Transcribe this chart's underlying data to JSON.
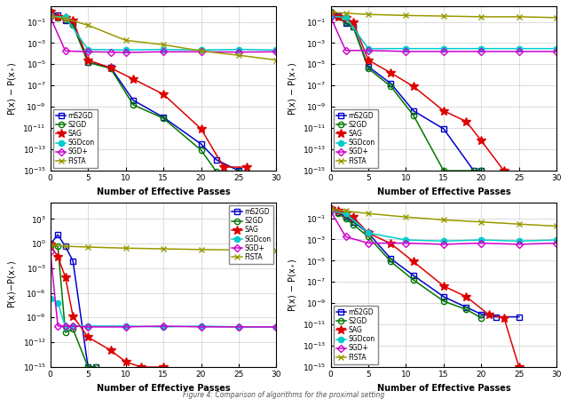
{
  "xlabel": "Number of Effective Passes",
  "ylabel_left": "P(x) - P(x_*)",
  "ylabel_right": "P(x) - P(x_*)",
  "method_order": [
    "mS2GD",
    "S2GD",
    "SAG",
    "SGDcon",
    "SGD+",
    "FISTA"
  ],
  "colors": {
    "mS2GD": "#0000cc",
    "S2GD": "#007700",
    "SAG": "#dd0000",
    "SGDcon": "#00cccc",
    "SGD+": "#cc00cc",
    "FISTA": "#999900"
  },
  "markers": {
    "mS2GD": "s",
    "S2GD": "o",
    "SAG": "*",
    "SGDcon": "o",
    "SGD+": "D",
    "FISTA": "x"
  },
  "mfc": {
    "mS2GD": "none",
    "S2GD": "none",
    "SAG": "#dd0000",
    "SGDcon": "#00cccc",
    "SGD+": "none",
    "FISTA": "#999900"
  },
  "sp1": {
    "ylim": [
      1e-15,
      3
    ],
    "legend_loc": "lower left",
    "mS2GD": {
      "x": [
        0,
        1,
        2,
        3,
        5,
        8,
        11,
        15,
        20,
        22,
        25
      ],
      "y": [
        0.65,
        0.45,
        0.14,
        0.07,
        1.5e-05,
        5e-06,
        4e-09,
        1e-10,
        3e-13,
        1e-14,
        9e-16
      ]
    },
    "S2GD": {
      "x": [
        0,
        1,
        2,
        3,
        5,
        8,
        11,
        15,
        20,
        22,
        25
      ],
      "y": [
        0.9,
        0.22,
        0.17,
        0.05,
        1.5e-05,
        4e-06,
        1.5e-09,
        8e-11,
        8e-14,
        8e-16,
        8e-16
      ]
    },
    "SAG": {
      "x": [
        0,
        1,
        2,
        3,
        5,
        8,
        11,
        15,
        20,
        23,
        26
      ],
      "y": [
        0.9,
        0.28,
        0.24,
        0.14,
        2.5e-05,
        4.5e-06,
        4e-07,
        1.5e-08,
        8e-12,
        2e-15,
        2e-15
      ]
    },
    "SGDcon": {
      "x": [
        0,
        2,
        5,
        10,
        15,
        20,
        25,
        30
      ],
      "y": [
        0.35,
        0.28,
        0.00025,
        0.00022,
        0.00025,
        0.00022,
        0.00025,
        0.00022
      ]
    },
    "SGD+": {
      "x": [
        0,
        2,
        5,
        8,
        10,
        15,
        20,
        25,
        30
      ],
      "y": [
        0.28,
        0.00018,
        0.00015,
        0.00014,
        0.00013,
        0.00015,
        0.00015,
        0.00014,
        0.00015
      ]
    },
    "FISTA": {
      "x": [
        0,
        2,
        5,
        10,
        15,
        20,
        25,
        30
      ],
      "y": [
        0.35,
        0.2,
        0.048,
        0.0018,
        0.0007,
        0.00018,
        7e-05,
        2.5e-05
      ]
    }
  },
  "sp2": {
    "ylim": [
      1e-15,
      3
    ],
    "legend_loc": "lower left",
    "mS2GD": {
      "x": [
        0,
        1,
        2,
        3,
        5,
        8,
        11,
        15,
        19,
        20
      ],
      "y": [
        0.65,
        0.35,
        0.07,
        0.035,
        6e-06,
        1.5e-07,
        4e-10,
        8e-12,
        9e-16,
        9e-16
      ]
    },
    "S2GD": {
      "x": [
        0,
        1,
        2,
        3,
        5,
        8,
        11,
        15,
        19,
        20
      ],
      "y": [
        0.85,
        0.28,
        0.09,
        0.035,
        4e-06,
        8e-08,
        1.5e-10,
        9e-16,
        9e-16,
        9e-16
      ]
    },
    "SAG": {
      "x": [
        0,
        1,
        2,
        3,
        5,
        8,
        11,
        15,
        18,
        20,
        23
      ],
      "y": [
        0.65,
        0.32,
        0.23,
        0.09,
        2.5e-05,
        1.5e-06,
        8e-08,
        4e-10,
        4e-11,
        6e-13,
        9e-16
      ]
    },
    "SGDcon": {
      "x": [
        0,
        2,
        5,
        10,
        15,
        20,
        25,
        30
      ],
      "y": [
        0.32,
        0.28,
        0.0003,
        0.0003,
        0.0003,
        0.0003,
        0.0003,
        0.0003
      ]
    },
    "SGD+": {
      "x": [
        0,
        2,
        5,
        10,
        15,
        20,
        25,
        30
      ],
      "y": [
        0.28,
        0.0002,
        0.0002,
        0.00016,
        0.00016,
        0.00016,
        0.00016,
        0.00016
      ]
    },
    "FISTA": {
      "x": [
        0,
        2,
        5,
        10,
        15,
        20,
        25,
        30
      ],
      "y": [
        0.8,
        0.65,
        0.5,
        0.4,
        0.35,
        0.3,
        0.3,
        0.25
      ]
    }
  },
  "sp3": {
    "ylim": [
      1e-15,
      100000.0
    ],
    "legend_loc": "upper right",
    "mS2GD": {
      "x": [
        0,
        1,
        2,
        3,
        5,
        6
      ],
      "y": [
        0.85,
        12.0,
        0.45,
        0.008,
        9e-16,
        9e-16
      ]
    },
    "S2GD": {
      "x": [
        0,
        1,
        2,
        3,
        5,
        6
      ],
      "y": [
        0.85,
        0.45,
        1.5e-11,
        4e-11,
        9e-16,
        9e-16
      ]
    },
    "SAG": {
      "x": [
        0,
        1,
        2,
        3,
        5,
        8,
        10,
        12,
        15
      ],
      "y": [
        0.75,
        0.025,
        8e-05,
        1.5e-09,
        4e-12,
        1e-13,
        4e-15,
        9e-16,
        9e-16
      ]
    },
    "SGDcon": {
      "x": [
        0,
        1,
        2,
        3,
        5,
        10,
        15,
        20,
        25,
        30
      ],
      "y": [
        2e-07,
        6e-08,
        7e-11,
        9e-11,
        9e-11,
        9e-11,
        7e-11,
        9e-11,
        7e-11,
        7e-11
      ]
    },
    "SGD+": {
      "x": [
        0,
        1,
        2,
        3,
        5,
        10,
        15,
        20,
        25,
        30
      ],
      "y": [
        0.12,
        9e-11,
        9e-11,
        9e-11,
        7e-11,
        7e-11,
        9e-11,
        7e-11,
        7e-11,
        7e-11
      ]
    },
    "FISTA": {
      "x": [
        0,
        2,
        5,
        10,
        15,
        20,
        25,
        30
      ],
      "y": [
        0.65,
        0.48,
        0.38,
        0.28,
        0.23,
        0.19,
        0.17,
        0.14
      ]
    }
  },
  "sp4": {
    "ylim": [
      1e-15,
      3
    ],
    "legend_loc": "lower left",
    "mS2GD": {
      "x": [
        0,
        1,
        2,
        3,
        5,
        8,
        11,
        15,
        18,
        20,
        22,
        25
      ],
      "y": [
        0.85,
        0.38,
        0.13,
        0.045,
        0.004,
        1.5e-05,
        4e-07,
        4e-09,
        4e-10,
        9e-11,
        5e-11,
        5e-11
      ]
    },
    "S2GD": {
      "x": [
        0,
        1,
        2,
        3,
        5,
        8,
        11,
        15,
        18,
        20
      ],
      "y": [
        0.75,
        0.28,
        0.09,
        0.025,
        0.0018,
        8e-06,
        1.5e-07,
        1.5e-09,
        2.5e-10,
        4e-11
      ]
    },
    "SAG": {
      "x": [
        0,
        1,
        2,
        3,
        5,
        8,
        11,
        15,
        18,
        21,
        23,
        25
      ],
      "y": [
        0.85,
        0.48,
        0.28,
        0.13,
        0.004,
        0.0004,
        8e-06,
        4e-08,
        4e-09,
        8e-11,
        4e-11,
        9e-16
      ]
    },
    "SGDcon": {
      "x": [
        0,
        2,
        5,
        10,
        15,
        20,
        25,
        30
      ],
      "y": [
        0.48,
        0.28,
        0.004,
        0.0009,
        0.0007,
        0.0009,
        0.0007,
        0.0009
      ]
    },
    "SGD+": {
      "x": [
        0,
        2,
        5,
        10,
        15,
        20,
        25,
        30
      ],
      "y": [
        0.48,
        0.0018,
        0.00045,
        0.00045,
        0.00035,
        0.00045,
        0.00035,
        0.00045
      ]
    },
    "FISTA": {
      "x": [
        0,
        2,
        5,
        10,
        15,
        20,
        25,
        30
      ],
      "y": [
        0.75,
        0.48,
        0.28,
        0.13,
        0.07,
        0.045,
        0.028,
        0.018
      ]
    }
  }
}
